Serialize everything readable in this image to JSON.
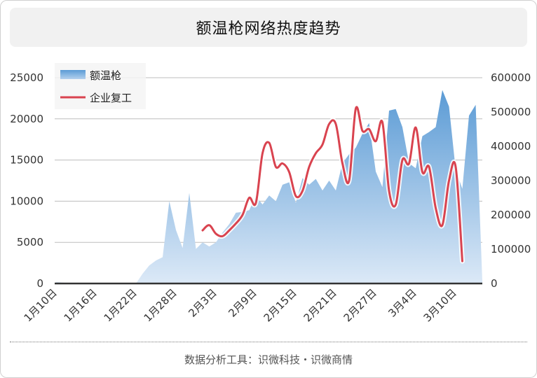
{
  "footer": "数据分析工具：识微科技・识微商情",
  "chart_data": {
    "type": "area+line",
    "title": "额温枪网络热度趋势",
    "legend_placement": "top-left",
    "colors": {
      "area_top": "#5b9bd5",
      "area_bottom": "#dce9f7",
      "line": "#d9434f",
      "grid": "#bdbdbd"
    },
    "x_tick_labels": [
      "1月10日",
      "1月16日",
      "1月22日",
      "1月28日",
      "2月3日",
      "2月9日",
      "2月15日",
      "2月21日",
      "2月27日",
      "3月4日",
      "3月10日"
    ],
    "y_left": {
      "ylim": [
        0,
        25000
      ],
      "ticks": [
        "0",
        "5000",
        "10000",
        "15000",
        "20000",
        "25000"
      ]
    },
    "y_right": {
      "ylim": [
        0,
        600000
      ],
      "ticks": [
        "0",
        "100000",
        "200000",
        "300000",
        "400000",
        "500000",
        "600000"
      ]
    },
    "series": [
      {
        "name": "额温枪",
        "type": "area",
        "axis": "left",
        "start_date": "1月10日",
        "values": [
          200,
          100,
          0,
          0,
          0,
          0,
          0,
          0,
          0,
          0,
          0,
          0,
          0,
          1200,
          2200,
          2800,
          3200,
          10000,
          6500,
          4300,
          11000,
          4200,
          5000,
          4500,
          5000,
          6200,
          7200,
          8600,
          8700,
          8900,
          10600,
          9600,
          10700,
          10000,
          12000,
          12300,
          9800,
          12800,
          12000,
          12700,
          11300,
          12500,
          11300,
          14600,
          15700,
          16500,
          18200,
          19500,
          13600,
          11700,
          21000,
          21200,
          19000,
          14600,
          14000,
          17900,
          18400,
          19000,
          23500,
          21500,
          13800,
          11500,
          20400,
          21700,
          300
        ]
      },
      {
        "name": "企业复工",
        "type": "line",
        "axis": "right",
        "start_date": "2月1日",
        "values": [
          155000,
          170000,
          145000,
          138000,
          155000,
          175000,
          200000,
          250000,
          235000,
          380000,
          410000,
          340000,
          350000,
          325000,
          255000,
          270000,
          340000,
          380000,
          405000,
          465000,
          465000,
          350000,
          300000,
          510000,
          445000,
          450000,
          415000,
          470000,
          270000,
          230000,
          360000,
          350000,
          455000,
          325000,
          340000,
          220000,
          170000,
          300000,
          340000,
          65000
        ]
      }
    ]
  }
}
